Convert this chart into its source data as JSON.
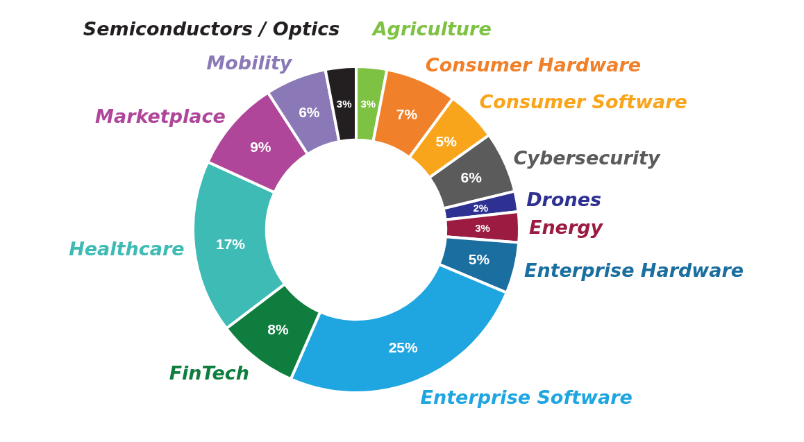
{
  "chart_data": {
    "type": "donut",
    "categories": [
      "Agriculture",
      "Consumer Hardware",
      "Consumer Software",
      "Cybersecurity",
      "Drones",
      "Energy",
      "Enterprise Hardware",
      "Enterprise Software",
      "FinTech",
      "Healthcare",
      "Marketplace",
      "Mobility",
      "Semiconductors / Optics"
    ],
    "values": [
      3,
      7,
      5,
      6,
      2,
      3,
      5,
      25,
      8,
      17,
      9,
      6,
      3
    ],
    "value_labels": [
      "3%",
      "7%",
      "5%",
      "6%",
      "2%",
      "3%",
      "5%",
      "25%",
      "8%",
      "17%",
      "9%",
      "6%",
      "3%"
    ],
    "colors": [
      "#7dc242",
      "#f0812a",
      "#f9a51c",
      "#5b5b5b",
      "#2e3192",
      "#9b1b41",
      "#1a6ea0",
      "#1fa6e0",
      "#0e7d3e",
      "#3dbbb4",
      "#b0469a",
      "#8a79b6",
      "#231f20"
    ],
    "legend": false
  }
}
